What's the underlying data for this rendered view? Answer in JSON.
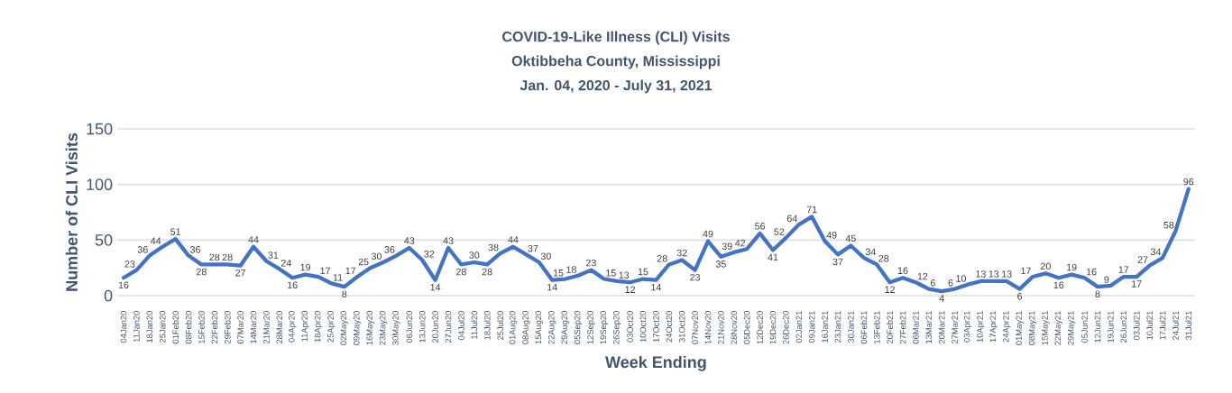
{
  "chart_data": {
    "type": "line",
    "title": "COVID-19-Like Illness (CLI) Visits",
    "subtitle": "Oktibbeha County, Mississippi",
    "annotations": [
      "Jan. 04, 2020 - July 31, 2021"
    ],
    "xlabel": "Week Ending",
    "ylabel": "Number of CLI Visits",
    "categories": [
      "04Jan20",
      "11Jan20",
      "18Jan20",
      "25Jan20",
      "01Feb20",
      "08Feb20",
      "15Feb20",
      "22Feb20",
      "29Feb20",
      "07Mar20",
      "14Mar20",
      "21Mar20",
      "28Mar20",
      "04Apr20",
      "11Apr20",
      "18Apr20",
      "25Apr20",
      "02May20",
      "09May20",
      "16May20",
      "23May20",
      "30May20",
      "06Jun20",
      "13Jun20",
      "20Jun20",
      "27Jun20",
      "04Jul20",
      "11Jul20",
      "18Jul20",
      "25Jul20",
      "01Aug20",
      "08Aug20",
      "15Aug20",
      "22Aug20",
      "29Aug20",
      "05Sep20",
      "12Sep20",
      "19Sep20",
      "26Sep20",
      "03Oct20",
      "10Oct20",
      "17Oct20",
      "24Oct20",
      "31Oct20",
      "07Nov20",
      "14Nov20",
      "21Nov20",
      "28Nov20",
      "05Dec20",
      "12Dec20",
      "19Dec20",
      "26Dec20",
      "02Jan21",
      "09Jan21",
      "16Jan21",
      "23Jan21",
      "30Jan21",
      "06Feb21",
      "13Feb21",
      "20Feb21",
      "27Feb21",
      "06Mar21",
      "13Mar21",
      "20Mar21",
      "27Mar21",
      "03Apr21",
      "10Apr21",
      "17Apr21",
      "24Apr21",
      "01May21",
      "08May21",
      "15May21",
      "22May21",
      "29May21",
      "05Jun21",
      "12Jun21",
      "19Jun21",
      "26Jun21",
      "03Jul21",
      "10Jul21",
      "17Jul21",
      "24Jul21",
      "31Jul21"
    ],
    "values": [
      16,
      23,
      36,
      44,
      51,
      36,
      28,
      28,
      28,
      27,
      44,
      31,
      24,
      16,
      19,
      17,
      11,
      8,
      17,
      25,
      30,
      36,
      43,
      32,
      14,
      43,
      28,
      30,
      28,
      38,
      44,
      37,
      30,
      14,
      15,
      18,
      23,
      15,
      13,
      12,
      15,
      14,
      28,
      32,
      23,
      49,
      35,
      39,
      42,
      56,
      41,
      52,
      64,
      71,
      49,
      37,
      45,
      34,
      28,
      12,
      16,
      12,
      6,
      4,
      6,
      10,
      13,
      13,
      13,
      6,
      17,
      20,
      16,
      19,
      16,
      8,
      9,
      17,
      17,
      27,
      34,
      58,
      96
    ],
    "color": "#4472c4",
    "ylim": [
      0,
      150
    ],
    "yticks": [
      0,
      50,
      100,
      150
    ],
    "grid": "y",
    "data_labels": true,
    "marker": "none",
    "line_style": "solid"
  }
}
